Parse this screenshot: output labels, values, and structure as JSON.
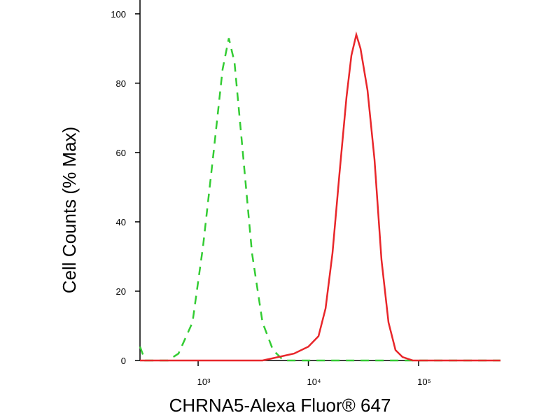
{
  "chart_data": {
    "type": "line",
    "xlabel": "CHRNA5-Alexa Fluor® 647",
    "ylabel": "Cell Counts (% Max)",
    "xscale": "log",
    "xlim": [
      297,
      553000
    ],
    "ylim": [
      0,
      104
    ],
    "xticks": [
      {
        "value": 1000,
        "label": "10³"
      },
      {
        "value": 10000,
        "label": "10⁴"
      },
      {
        "value": 100000,
        "label": "10⁵"
      }
    ],
    "yticks": [
      0,
      20,
      40,
      60,
      80,
      100
    ],
    "series": [
      {
        "color": "#33cc33",
        "dashed": true,
        "x": [
          297,
          330,
          533,
          664,
          889,
          1108,
          1380,
          1668,
          1900,
          2138,
          2477,
          3083,
          3837,
          4775,
          5957,
          553000
        ],
        "values": [
          4,
          0,
          0,
          2,
          11,
          33,
          60,
          84,
          93,
          86,
          64,
          31,
          11,
          3,
          0,
          0
        ]
      },
      {
        "color": "#e8262a",
        "dashed": false,
        "x": [
          297,
          3837,
          7413,
          10000,
          12360,
          14320,
          16560,
          19170,
          22190,
          24570,
          27220,
          29710,
          34400,
          39810,
          46080,
          53310,
          61660,
          71450,
          88920,
          553000
        ],
        "values": [
          0,
          0,
          2,
          4,
          7,
          15,
          31,
          54,
          76,
          88,
          94,
          90,
          78,
          58,
          29,
          11,
          3,
          1,
          0,
          0
        ]
      }
    ]
  }
}
